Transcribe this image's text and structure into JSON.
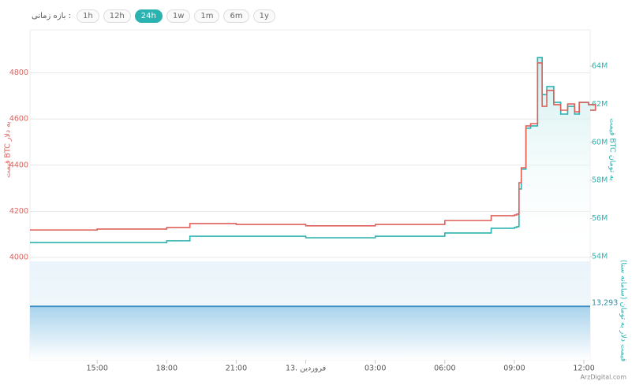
{
  "toolbar": {
    "label": "بازه زمانی :",
    "options": [
      "1h",
      "12h",
      "24h",
      "1w",
      "1m",
      "6m",
      "1y"
    ],
    "active": "24h"
  },
  "watermark": "ArzDigital.com",
  "chart_data": [
    {
      "type": "line",
      "step": true,
      "grid": true,
      "ylabel": "قیمت BTC به دلار",
      "y2label": "قیمت BTC به تومان",
      "x": [
        12.1,
        15,
        18,
        19,
        21,
        24,
        27,
        30,
        32,
        33,
        33.1,
        33.2,
        33.3,
        33.5,
        33.7,
        34.0,
        34.2,
        34.4,
        34.7,
        35.0,
        35.3,
        35.6,
        35.8,
        36.2,
        36.5
      ],
      "xlim": [
        12.1,
        36.27
      ],
      "xticks": [
        {
          "value": 15,
          "label": "15:00"
        },
        {
          "value": 18,
          "label": "18:00"
        },
        {
          "value": 21,
          "label": "21:00"
        },
        {
          "value": 24,
          "label": "13. فروردین"
        },
        {
          "value": 27,
          "label": "03:00"
        },
        {
          "value": 30,
          "label": "06:00"
        },
        {
          "value": 33,
          "label": "09:00"
        },
        {
          "value": 36,
          "label": "12:00"
        }
      ],
      "ylim": [
        3983,
        4986
      ],
      "yticks": [
        4000,
        4200,
        4400,
        4600,
        4800
      ],
      "y2lim": [
        53750000,
        65900000
      ],
      "y2ticks": [
        {
          "value": 54000000,
          "label": "54M"
        },
        {
          "value": 56000000,
          "label": "56M"
        },
        {
          "value": 58000000,
          "label": "58M"
        },
        {
          "value": 60000000,
          "label": "60M"
        },
        {
          "value": 62000000,
          "label": "62M"
        },
        {
          "value": 64000000,
          "label": "64M"
        }
      ],
      "series": [
        {
          "name": "قیمت BTC به دلار",
          "color": "#e0605a",
          "values": [
            4119,
            4123,
            4130,
            4147,
            4143,
            4137,
            4143,
            4160,
            4181,
            4184,
            4188,
            4324,
            4389,
            4570,
            4580,
            4843,
            4655,
            4724,
            4662,
            4638,
            4665,
            4631,
            4672,
            4662,
            4638
          ]
        },
        {
          "name": "قیمت BTC به تومان",
          "color": "#2bb3b1",
          "axis": "y2",
          "values": [
            54740000,
            54740000,
            54830000,
            55070000,
            55070000,
            54990000,
            55070000,
            55240000,
            55490000,
            55530000,
            55570000,
            57550000,
            58590000,
            60740000,
            60860000,
            64450000,
            62510000,
            62930000,
            62100000,
            61480000,
            61890000,
            61480000,
            62100000,
            61980000,
            61690000
          ]
        }
      ]
    },
    {
      "type": "hline",
      "y2label": "قیمت دلار به تومان (سامانه سنا)",
      "color": "#3a8fc4",
      "ylim": [
        13000,
        13540
      ],
      "value": 13293,
      "value_label": "13,293"
    }
  ]
}
